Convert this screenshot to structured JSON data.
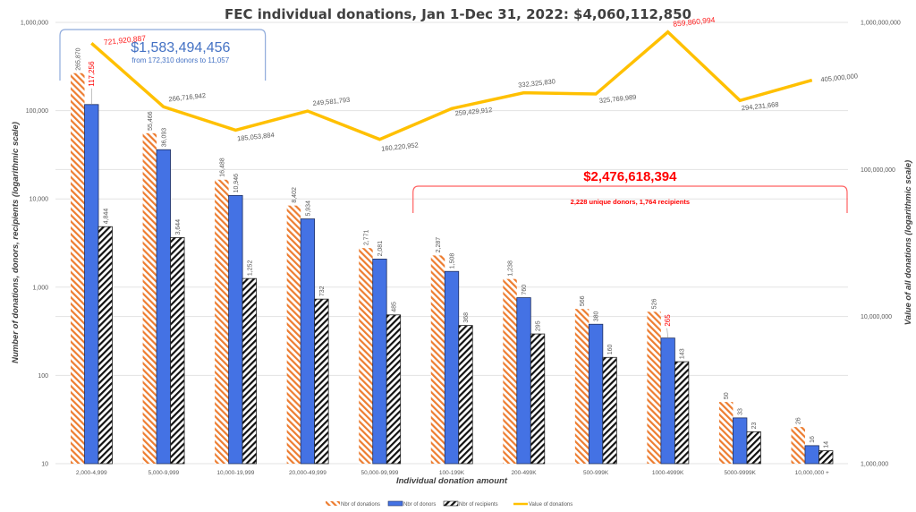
{
  "chart_data": {
    "type": "bar",
    "title": "FEC individual donations, Jan 1-Dec 31, 2022:  $4,060,112,850",
    "xlabel": "Individual donation amount",
    "ylabel": "Number of donations, donors, recipients (logarithmic scale)",
    "y2label": "Value of all donations (logarithmic scale)",
    "yscale": "log",
    "ylim": [
      10,
      1000000
    ],
    "y2scale": "log",
    "y2lim": [
      1000000,
      1000000000
    ],
    "yticks": [
      "10",
      "100",
      "1,000",
      "10,000",
      "100,000",
      "1,000,000"
    ],
    "y2ticks": [
      "1,000,000",
      "10,000,000",
      "100,000,000",
      "1,000,000,000"
    ],
    "grid": true,
    "legend_position": "bottom",
    "categories": [
      "2,000-4,999",
      "5,000-9,999",
      "10,000-19,999",
      "20,000-49,999",
      "50,000-99,999",
      "100-199K",
      "200-499K",
      "500-999K",
      "1000-4999K",
      "5000-9999K",
      "10,000,000 +"
    ],
    "series": [
      {
        "name": "Nbr of donations",
        "type": "bar",
        "axis": "left",
        "color": "#ed7d31",
        "pattern": "hatch-orange",
        "values": [
          265870,
          55466,
          16488,
          8402,
          2771,
          2287,
          1238,
          566,
          526,
          50,
          26
        ],
        "labels": [
          "265,870",
          "55,466",
          "16,488",
          "8,402",
          "2,771",
          "2,287",
          "1,238",
          "566",
          "526",
          "50",
          "26"
        ]
      },
      {
        "name": "Nbr of donors",
        "type": "bar",
        "axis": "left",
        "color": "#4472e4",
        "pattern": "solid",
        "values": [
          117256,
          36093,
          10946,
          5934,
          2081,
          1508,
          760,
          380,
          265,
          33,
          16
        ],
        "labels": [
          "117,256",
          "36,093",
          "10,946",
          "5,934",
          "2,081",
          "1,508",
          "760",
          "380",
          "265",
          "33",
          "16"
        ],
        "highlighted_labels": [
          0,
          8
        ]
      },
      {
        "name": "Nbr of recipients",
        "type": "bar",
        "axis": "left",
        "color": "#000000",
        "pattern": "hatch-black",
        "values": [
          4844,
          3644,
          1252,
          732,
          485,
          368,
          295,
          160,
          143,
          23,
          14
        ],
        "labels": [
          "4,844",
          "3,644",
          "1,252",
          "732",
          "485",
          "368",
          "295",
          "160",
          "143",
          "23",
          "14"
        ]
      },
      {
        "name": "Value of donations",
        "type": "line",
        "axis": "right",
        "color": "#ffc000",
        "values": [
          721920887,
          266716942,
          185053884,
          249581793,
          160220952,
          259429912,
          332325830,
          325769989,
          859860994,
          294231668,
          405000000
        ],
        "labels": [
          "721,920,887",
          "266,716,942",
          "185,053,884",
          "249,581,793",
          "160,220,952",
          "259,429,912",
          "332,325,830",
          "325,769,989",
          "859,860,994",
          "294,231,668",
          "405,000,000"
        ],
        "highlighted_labels": [
          0,
          8
        ]
      }
    ],
    "annotations": [
      {
        "name": "bracket-low",
        "span": [
          "2,000-4,999",
          "10,000-19,999"
        ],
        "color": "#4472c4",
        "total": "$1,583,494,456",
        "subtitle": "from 172,310 donors to 11,057"
      },
      {
        "name": "bracket-high",
        "span": [
          "100-199K",
          "10,000,000 +"
        ],
        "color": "#ff0000",
        "total": "$2,476,618,394",
        "subtitle": "2,228 unique donors, 1,764 recipients"
      }
    ]
  }
}
